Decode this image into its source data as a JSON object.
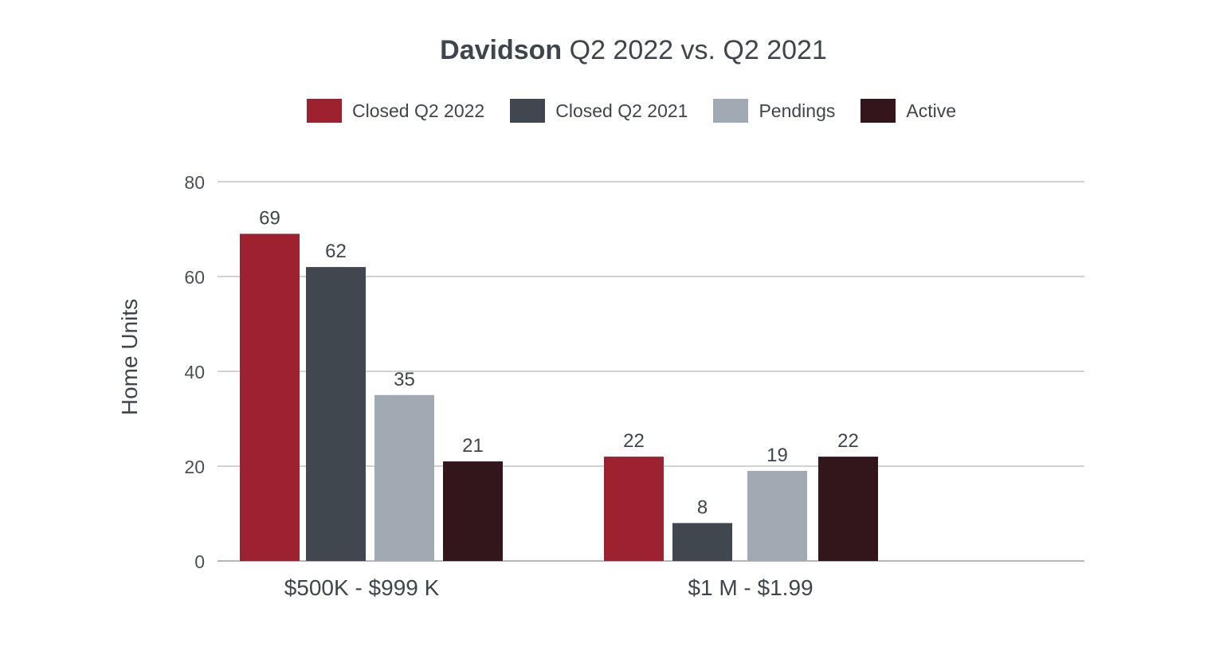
{
  "chart_data": {
    "type": "bar",
    "title_bold": "Davidson",
    "title_rest": " Q2 2022 vs. Q2 2021",
    "ylabel": "Home Units",
    "xlabel": "",
    "ylim": [
      0,
      80
    ],
    "yticks": [
      0,
      20,
      40,
      60,
      80
    ],
    "grid": true,
    "legend_position": "top",
    "categories": [
      "$500K - $999 K",
      "$1 M - $1.99"
    ],
    "series": [
      {
        "name": "Closed Q2 2022",
        "color": "#9e2130",
        "values": [
          69,
          22
        ]
      },
      {
        "name": "Closed Q2 2021",
        "color": "#40474f",
        "values": [
          62,
          8
        ]
      },
      {
        "name": "Pendings",
        "color": "#a1aab2",
        "values": [
          35,
          19
        ]
      },
      {
        "name": "Active",
        "color": "#33161b",
        "values": [
          21,
          22
        ]
      }
    ]
  }
}
